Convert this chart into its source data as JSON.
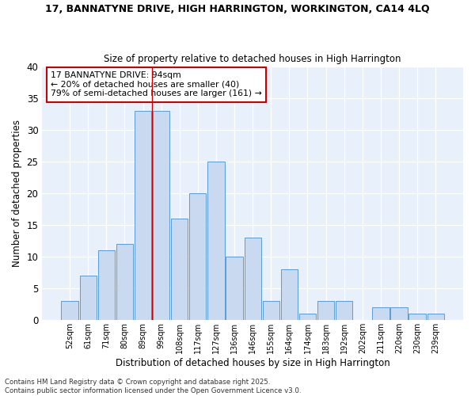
{
  "title1": "17, BANNATYNE DRIVE, HIGH HARRINGTON, WORKINGTON, CA14 4LQ",
  "title2": "Size of property relative to detached houses in High Harrington",
  "xlabel": "Distribution of detached houses by size in High Harrington",
  "ylabel": "Number of detached properties",
  "categories": [
    "52sqm",
    "61sqm",
    "71sqm",
    "80sqm",
    "89sqm",
    "99sqm",
    "108sqm",
    "117sqm",
    "127sqm",
    "136sqm",
    "146sqm",
    "155sqm",
    "164sqm",
    "174sqm",
    "183sqm",
    "192sqm",
    "202sqm",
    "211sqm",
    "220sqm",
    "230sqm",
    "239sqm"
  ],
  "values": [
    3,
    7,
    11,
    12,
    33,
    33,
    16,
    20,
    25,
    10,
    13,
    3,
    8,
    1,
    3,
    3,
    0,
    2,
    2,
    1,
    1
  ],
  "bar_color": "#c8d9f0",
  "bar_edge_color": "#5b9bd5",
  "background_color": "#e8f0fb",
  "grid_color": "#ffffff",
  "annotation_text": "17 BANNATYNE DRIVE: 94sqm\n← 20% of detached houses are smaller (40)\n79% of semi-detached houses are larger (161) →",
  "annotation_box_color": "#ffffff",
  "annotation_box_edge": "#cc0000",
  "property_line_color": "#cc0000",
  "property_bar_index": 4,
  "ylim": [
    0,
    40
  ],
  "yticks": [
    0,
    5,
    10,
    15,
    20,
    25,
    30,
    35,
    40
  ],
  "footer": "Contains HM Land Registry data © Crown copyright and database right 2025.\nContains public sector information licensed under the Open Government Licence v3.0.",
  "bar_width": 0.92
}
